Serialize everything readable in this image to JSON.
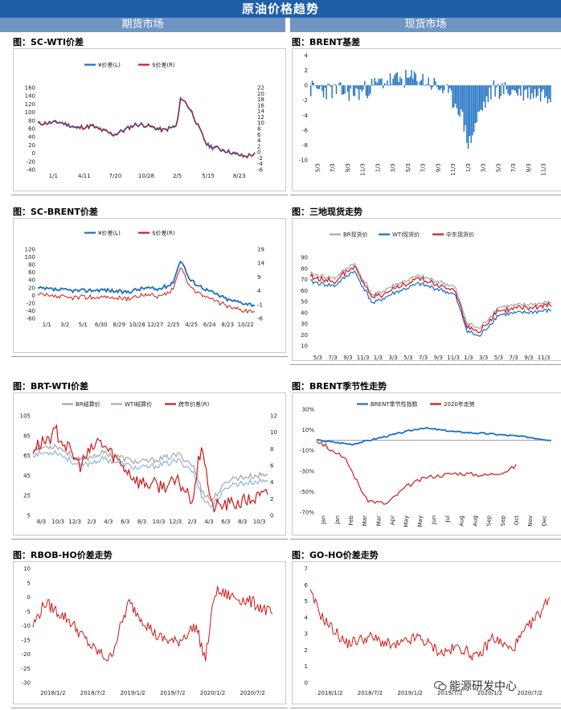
{
  "header": {
    "title": "原油价格趋势",
    "left_section": "期货市场",
    "right_section": "现货市场"
  },
  "watermark": "能源研发中心",
  "charts": [
    {
      "panel_title": "图：SC-WTI价差",
      "type": "line",
      "legend": [
        "¥价差(L)",
        "$价差(R)"
      ],
      "colors": [
        "#1a6fc0",
        "#cc1a1a"
      ],
      "x_ticks": [
        "1/1",
        "4/11",
        "7/20",
        "10/28",
        "2/5",
        "5/15",
        "8/23"
      ],
      "y_ticks_left": [
        "160",
        "140",
        "120",
        "100",
        "80",
        "60",
        "40",
        "20",
        "0",
        "-20",
        "-40"
      ],
      "y_ticks_right": [
        "22",
        "20",
        "18",
        "16",
        "14",
        "12",
        "10",
        "8",
        "6",
        "4",
        "2",
        "0",
        "-2",
        "-4",
        "-6"
      ],
      "ylim_left": [
        -40,
        160
      ],
      "ylim_right": [
        -6,
        22
      ]
    },
    {
      "panel_title": "图：BRENT基差",
      "type": "bar",
      "colors": [
        "#1a6fc0"
      ],
      "x_ticks": [
        "5/3",
        "7/3",
        "9/3",
        "11/3",
        "1/3",
        "3/3",
        "5/3",
        "7/3",
        "9/3",
        "11/3",
        "1/3",
        "3/3",
        "5/3",
        "7/3",
        "9/3",
        "11/3"
      ],
      "y_ticks_left": [
        "4",
        "2",
        "0",
        "-2",
        "-4",
        "-6",
        "-8",
        "-10"
      ],
      "ylim_left": [
        -10,
        4
      ]
    },
    {
      "panel_title": "图：SC-BRENT价差",
      "type": "line",
      "legend": [
        "¥价差(L)",
        "$价差(R)"
      ],
      "colors": [
        "#1a6fc0",
        "#cc1a1a"
      ],
      "x_ticks": [
        "1/1",
        "3/2",
        "5/1",
        "6/30",
        "8/29",
        "10/28",
        "12/27",
        "2/25",
        "4/25",
        "6/24",
        "8/23",
        "10/22"
      ],
      "y_ticks_left": [
        "120",
        "100",
        "80",
        "60",
        "40",
        "20",
        "0",
        "-20",
        "-40",
        "-60"
      ],
      "y_ticks_right": [
        "19",
        "14",
        "9",
        "4",
        "-1",
        "-6"
      ],
      "ylim_left": [
        -60,
        120
      ],
      "ylim_right": [
        -6,
        19
      ]
    },
    {
      "panel_title": "图：三地现货走势",
      "type": "line",
      "legend": [
        "BR现货价",
        "WTI现货价",
        "中东现货价"
      ],
      "colors": [
        "#a6a6a6",
        "#1a6fc0",
        "#cc1a1a"
      ],
      "x_ticks": [
        "5/3",
        "7/3",
        "9/3",
        "11/3",
        "1/3",
        "3/3",
        "5/3",
        "7/3",
        "9/3",
        "11/3",
        "1/3",
        "3/3",
        "5/3",
        "7/3",
        "9/3",
        "11/3"
      ],
      "y_ticks_left": [
        "90",
        "80",
        "70",
        "60",
        "50",
        "40",
        "30",
        "20",
        "10"
      ],
      "ylim_left": [
        10,
        90
      ]
    },
    {
      "panel_title": "图：BRT-WTI价差",
      "type": "line",
      "legend": [
        "BR结算价",
        "WTI结算价",
        "跨市价差(R)"
      ],
      "colors": [
        "#a6a6a6",
        "#8fb4dc",
        "#cc1a1a"
      ],
      "x_ticks": [
        "8/3",
        "10/3",
        "12/3",
        "2/3",
        "4/3",
        "6/3",
        "8/3",
        "10/3",
        "12/3",
        "2/3",
        "4/3",
        "6/3",
        "8/3",
        "10/3"
      ],
      "y_ticks_left": [
        "105",
        "85",
        "65",
        "45",
        "25",
        "5"
      ],
      "y_ticks_right": [
        "12",
        "10",
        "8",
        "6",
        "4",
        "2",
        "0"
      ],
      "ylim_left": [
        5,
        105
      ],
      "ylim_right": [
        0,
        12
      ]
    },
    {
      "panel_title": "图：BRENT季节性走势",
      "type": "line",
      "legend": [
        "BRENT季节性指数",
        "2020年走势"
      ],
      "colors": [
        "#1a6fc0",
        "#cc1a1a"
      ],
      "x_ticks": [
        "Jan",
        "Jan",
        "Feb",
        "Mar",
        "Mar",
        "Apr",
        "May",
        "May",
        "Jun",
        "Jul",
        "Aug",
        "Aug",
        "Sep",
        "Sep",
        "Oct",
        "Nov",
        "Dec"
      ],
      "y_ticks_left": [
        "30%",
        "10%",
        "-10%",
        "-30%",
        "-50%",
        "-70%"
      ],
      "ylim_left": [
        -70,
        30
      ]
    },
    {
      "panel_title": "图：RBOB-HO价差走势",
      "type": "line",
      "colors": [
        "#cc1a1a"
      ],
      "x_ticks": [
        "2018/1/2",
        "2018/7/2",
        "2019/1/2",
        "2019/7/2",
        "2020/1/2",
        "2020/7/2"
      ],
      "y_ticks_left": [
        "10",
        "5",
        "0",
        "-5",
        "-10",
        "-15",
        "-20",
        "-25",
        "-30"
      ],
      "ylim_left": [
        -30,
        10
      ]
    },
    {
      "panel_title": "图：GO-HO价差走势",
      "type": "line",
      "colors": [
        "#cc1a1a"
      ],
      "x_ticks": [
        "2018/1/2",
        "2018/7/2",
        "2019/1/2",
        "2019/7/2",
        "2020/1/2",
        "2020/7/2"
      ],
      "y_ticks_left": [
        "7",
        "6",
        "5",
        "4",
        "3",
        "2",
        "1",
        "0"
      ],
      "ylim_left": [
        0,
        7
      ]
    }
  ]
}
